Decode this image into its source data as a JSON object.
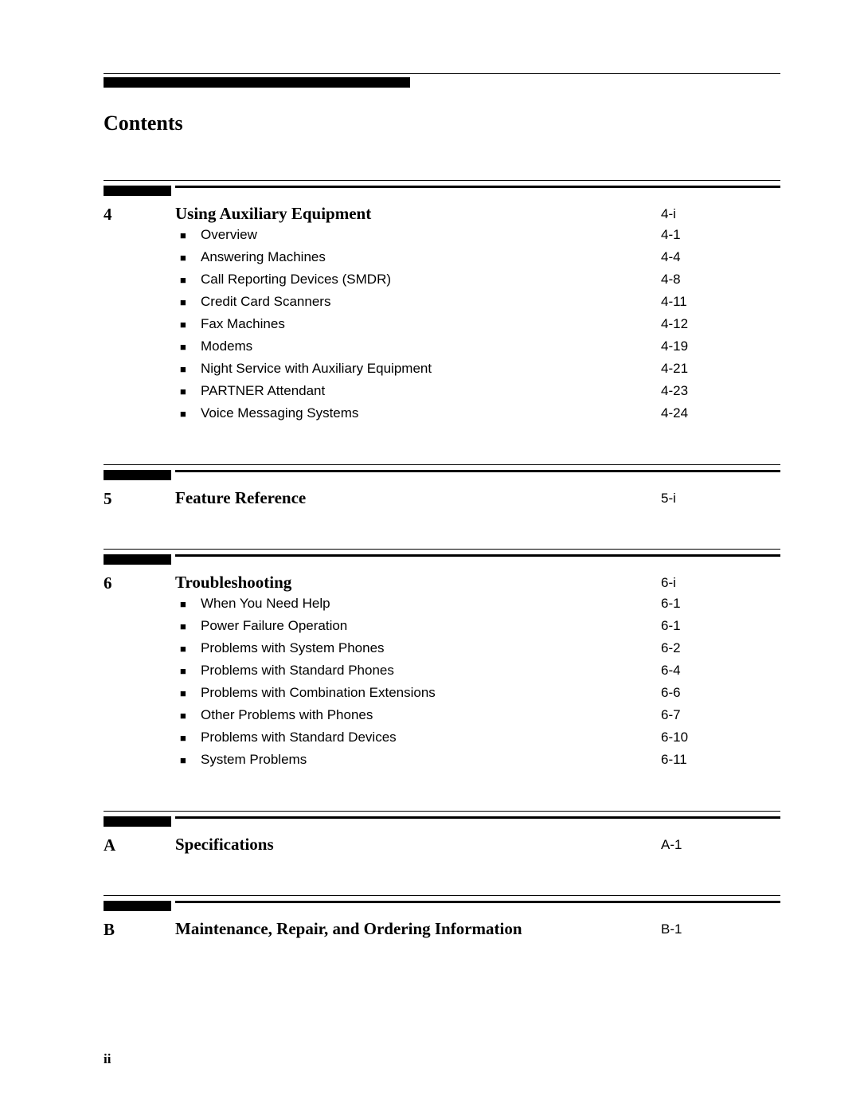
{
  "header_title": "Contents",
  "page_number": "ii",
  "colors": {
    "black": "#000000",
    "background": "#ffffff"
  },
  "sections": [
    {
      "number": "4",
      "title": "Using Auxiliary Equipment",
      "title_page": "4-i",
      "entries": [
        {
          "label": "Overview",
          "page": "4-1"
        },
        {
          "label": "Answering Machines",
          "page": "4-4"
        },
        {
          "label": "Call Reporting Devices (SMDR)",
          "page": "4-8"
        },
        {
          "label": "Credit Card Scanners",
          "page": "4-11"
        },
        {
          "label": "Fax Machines",
          "page": "4-12"
        },
        {
          "label": "Modems",
          "page": "4-19"
        },
        {
          "label": "Night Service with Auxiliary Equipment",
          "page": "4-21"
        },
        {
          "label": "PARTNER Attendant",
          "page": "4-23"
        },
        {
          "label": "Voice Messaging Systems",
          "page": "4-24"
        }
      ]
    },
    {
      "number": "5",
      "title": "Feature Reference",
      "title_page": "5-i",
      "entries": []
    },
    {
      "number": "6",
      "title": "Troubleshooting",
      "title_page": "6-i",
      "entries": [
        {
          "label": "When You Need Help",
          "page": "6-1"
        },
        {
          "label": "Power Failure Operation",
          "page": "6-1"
        },
        {
          "label": "Problems with System Phones",
          "page": "6-2"
        },
        {
          "label": "Problems with Standard Phones",
          "page": "6-4"
        },
        {
          "label": "Problems with Combination Extensions",
          "page": "6-6"
        },
        {
          "label": "Other Problems with Phones",
          "page": "6-7"
        },
        {
          "label": "Problems with Standard Devices",
          "page": "6-10"
        },
        {
          "label": "System Problems",
          "page": "6-11"
        }
      ]
    },
    {
      "number": "A",
      "title": "Specifications",
      "title_page": "A-1",
      "entries": []
    },
    {
      "number": "B",
      "title": "Maintenance, Repair, and Ordering Information",
      "title_page": "B-1",
      "entries": []
    }
  ]
}
